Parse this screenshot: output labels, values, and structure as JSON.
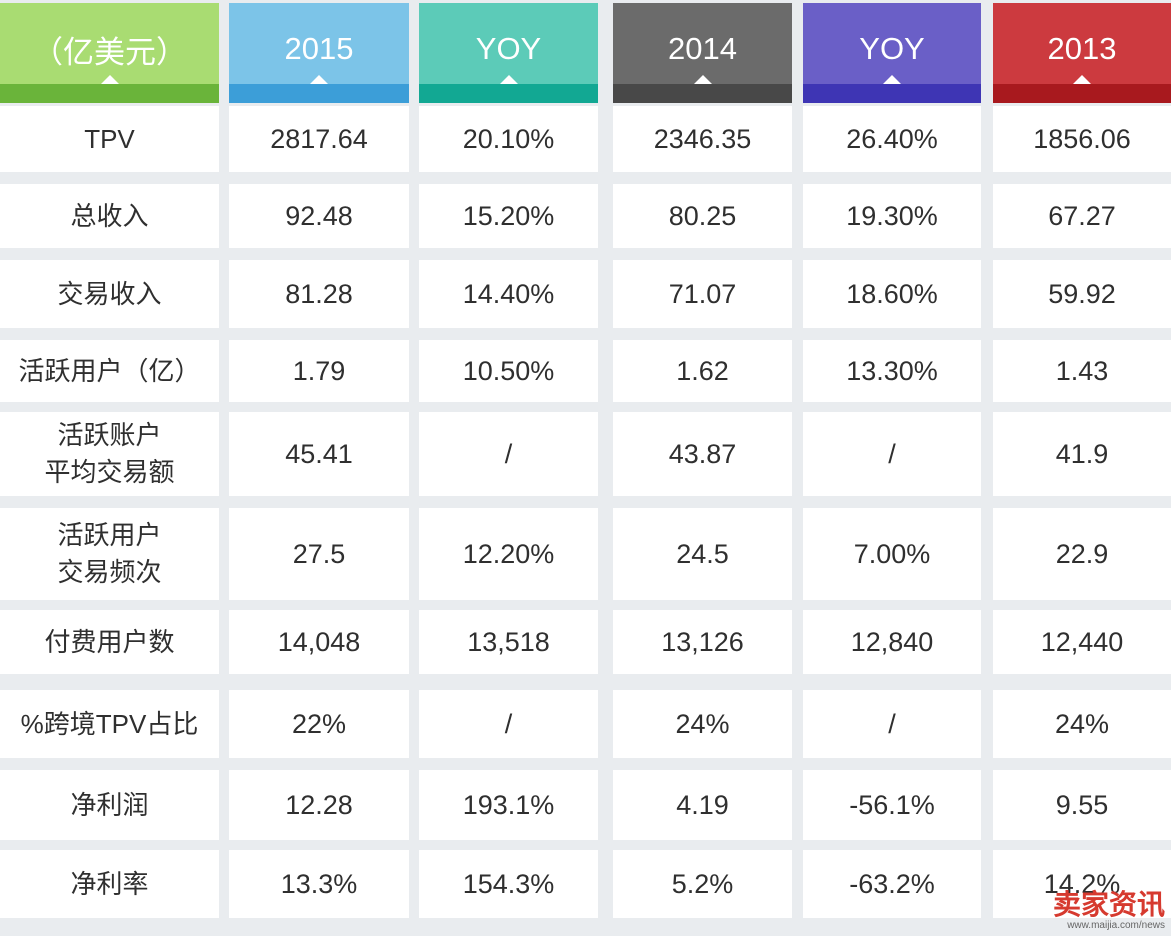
{
  "chart_data": {
    "type": "table",
    "header": {
      "unit": "（亿美元）",
      "columns": [
        "2015",
        "YOY",
        "2014",
        "YOY",
        "2013"
      ]
    },
    "header_colors": {
      "top": [
        "#a9dc72",
        "#7cc4e8",
        "#5ccbb8",
        "#6b6b6b",
        "#6a5fc7",
        "#cc3a3f"
      ],
      "bar": [
        "#6ab43a",
        "#3c9ed8",
        "#12a893",
        "#484848",
        "#3e35b4",
        "#a8191e"
      ]
    },
    "rows": [
      {
        "label": [
          "TPV"
        ],
        "values": [
          "2817.64",
          "20.10%",
          "2346.35",
          "26.40%",
          "1856.06"
        ]
      },
      {
        "label": [
          "总收入"
        ],
        "values": [
          "92.48",
          "15.20%",
          "80.25",
          "19.30%",
          "67.27"
        ]
      },
      {
        "label": [
          "交易收入"
        ],
        "values": [
          "81.28",
          "14.40%",
          "71.07",
          "18.60%",
          "59.92"
        ]
      },
      {
        "label": [
          "活跃用户（亿）"
        ],
        "values": [
          "1.79",
          "10.50%",
          "1.62",
          "13.30%",
          "1.43"
        ]
      },
      {
        "label": [
          "活跃账户",
          "平均交易额"
        ],
        "values": [
          "45.41",
          "/",
          "43.87",
          "/",
          "41.9"
        ]
      },
      {
        "label": [
          "活跃用户",
          "交易频次"
        ],
        "values": [
          "27.5",
          "12.20%",
          "24.5",
          "7.00%",
          "22.9"
        ]
      },
      {
        "label": [
          "付费用户数"
        ],
        "values": [
          "14,048",
          "13,518",
          "13,126",
          "12,840",
          "12,440"
        ]
      },
      {
        "label": [
          "%跨境TPV占比"
        ],
        "values": [
          "22%",
          "/",
          "24%",
          "/",
          "24%"
        ]
      },
      {
        "label": [
          "净利润"
        ],
        "values": [
          "12.28",
          "193.1%",
          "4.19",
          "-56.1%",
          "9.55"
        ]
      },
      {
        "label": [
          "净利率"
        ],
        "values": [
          "13.3%",
          "154.3%",
          "5.2%",
          "-63.2%",
          "14.2%"
        ]
      }
    ]
  },
  "watermark": {
    "brand": "卖家资讯",
    "url": "www.maijia.com/news"
  }
}
